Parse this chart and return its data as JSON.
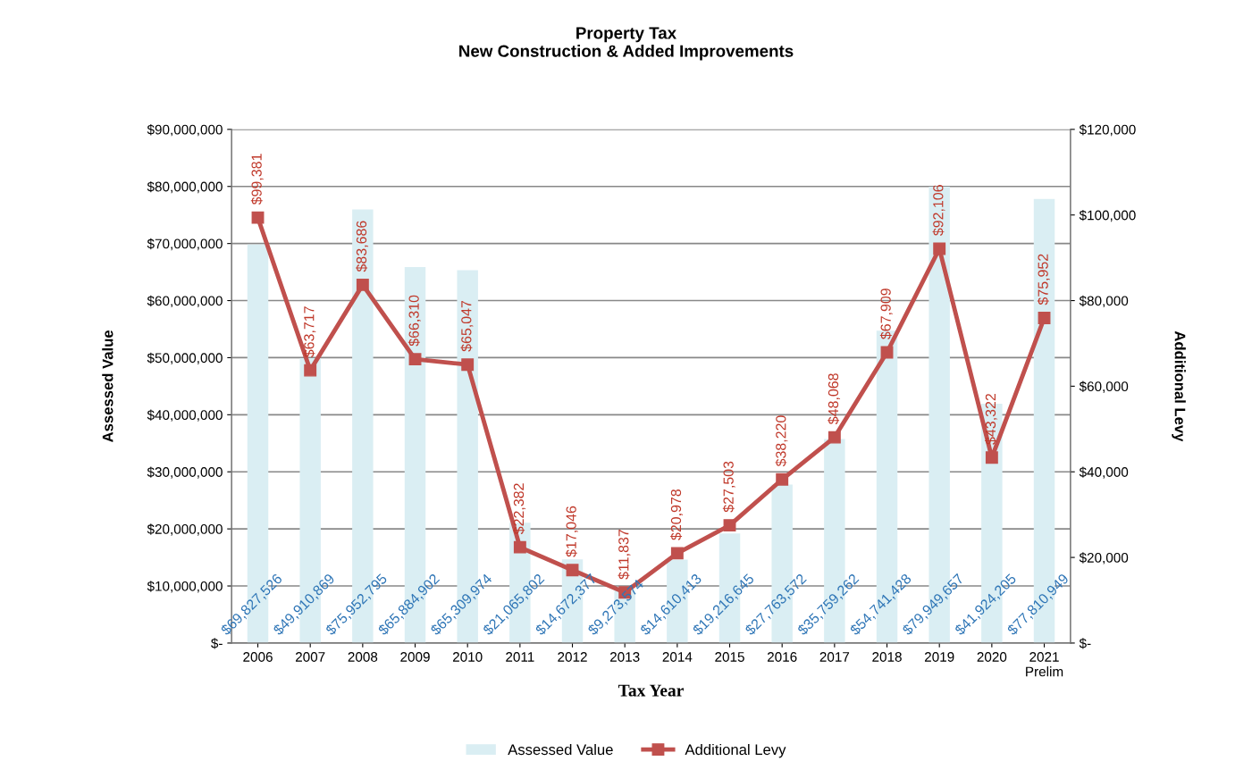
{
  "chart_data": {
    "type": "bar",
    "title": "Property Tax\nNew Construction & Added Improvements",
    "xlabel": "Tax Year",
    "ylabel": "Assessed Value",
    "y2label": "Additional Levy",
    "categories": [
      "2006",
      "2007",
      "2008",
      "2009",
      "2010",
      "2011",
      "2012",
      "2013",
      "2014",
      "2015",
      "2016",
      "2017",
      "2018",
      "2019",
      "2020",
      "2021\nPrelim"
    ],
    "series": [
      {
        "name": "Assessed Value",
        "color": "#daeef3",
        "values": [
          69827526,
          49910869,
          75952795,
          65884902,
          65309974,
          21065802,
          14672377,
          9273574,
          14610413,
          19216645,
          27763572,
          35759262,
          54741428,
          79949657,
          41924205,
          77810949
        ],
        "value_labels": [
          "$69,827,526",
          "$49,910,869",
          "$75,952,795",
          "$65,884,902",
          "$65,309,974",
          "$21,065,802",
          "$14,672,377",
          "$9,273,574",
          "$14,610,413",
          "$19,216,645",
          "$27,763,572",
          "$35,759,262",
          "$54,741,428",
          "$79,949,657",
          "$41,924,205",
          "$77,810,949"
        ]
      },
      {
        "name": "Additional Levy",
        "type": "line",
        "axis": "y2",
        "color": "#c0504d",
        "marker": "square",
        "line_style": "solid",
        "values": [
          99381,
          63717,
          83686,
          66310,
          65047,
          22382,
          17046,
          11837,
          20978,
          27503,
          38220,
          48068,
          67909,
          92106,
          43322,
          75952
        ],
        "value_labels": [
          "$99,381",
          "$63,717",
          "$83,686",
          "$66,310",
          "$65,047",
          "$22,382",
          "$17,046",
          "$11,837",
          "$20,978",
          "$27,503",
          "$38,220",
          "$48,068",
          "$67,909",
          "$92,106",
          "$43,322",
          "$75,952"
        ]
      }
    ],
    "ylim": [
      0,
      90000000
    ],
    "yticks": [
      {
        "value": 0,
        "label": "$-"
      },
      {
        "value": 10000000,
        "label": "$10,000,000"
      },
      {
        "value": 20000000,
        "label": "$20,000,000"
      },
      {
        "value": 30000000,
        "label": "$30,000,000"
      },
      {
        "value": 40000000,
        "label": "$40,000,000"
      },
      {
        "value": 50000000,
        "label": "$50,000,000"
      },
      {
        "value": 60000000,
        "label": "$60,000,000"
      },
      {
        "value": 70000000,
        "label": "$70,000,000"
      },
      {
        "value": 80000000,
        "label": "$80,000,000"
      },
      {
        "value": 90000000,
        "label": "$90,000,000"
      }
    ],
    "y2lim": [
      0,
      120000
    ],
    "y2ticks": [
      {
        "value": 0,
        "label": "$-"
      },
      {
        "value": 20000,
        "label": "$20,000"
      },
      {
        "value": 40000,
        "label": "$40,000"
      },
      {
        "value": 60000,
        "label": "$60,000"
      },
      {
        "value": 80000,
        "label": "$80,000"
      },
      {
        "value": 100000,
        "label": "$100,000"
      },
      {
        "value": 120000,
        "label": "$120,000"
      }
    ],
    "grid": "y",
    "legend": "bottom"
  }
}
